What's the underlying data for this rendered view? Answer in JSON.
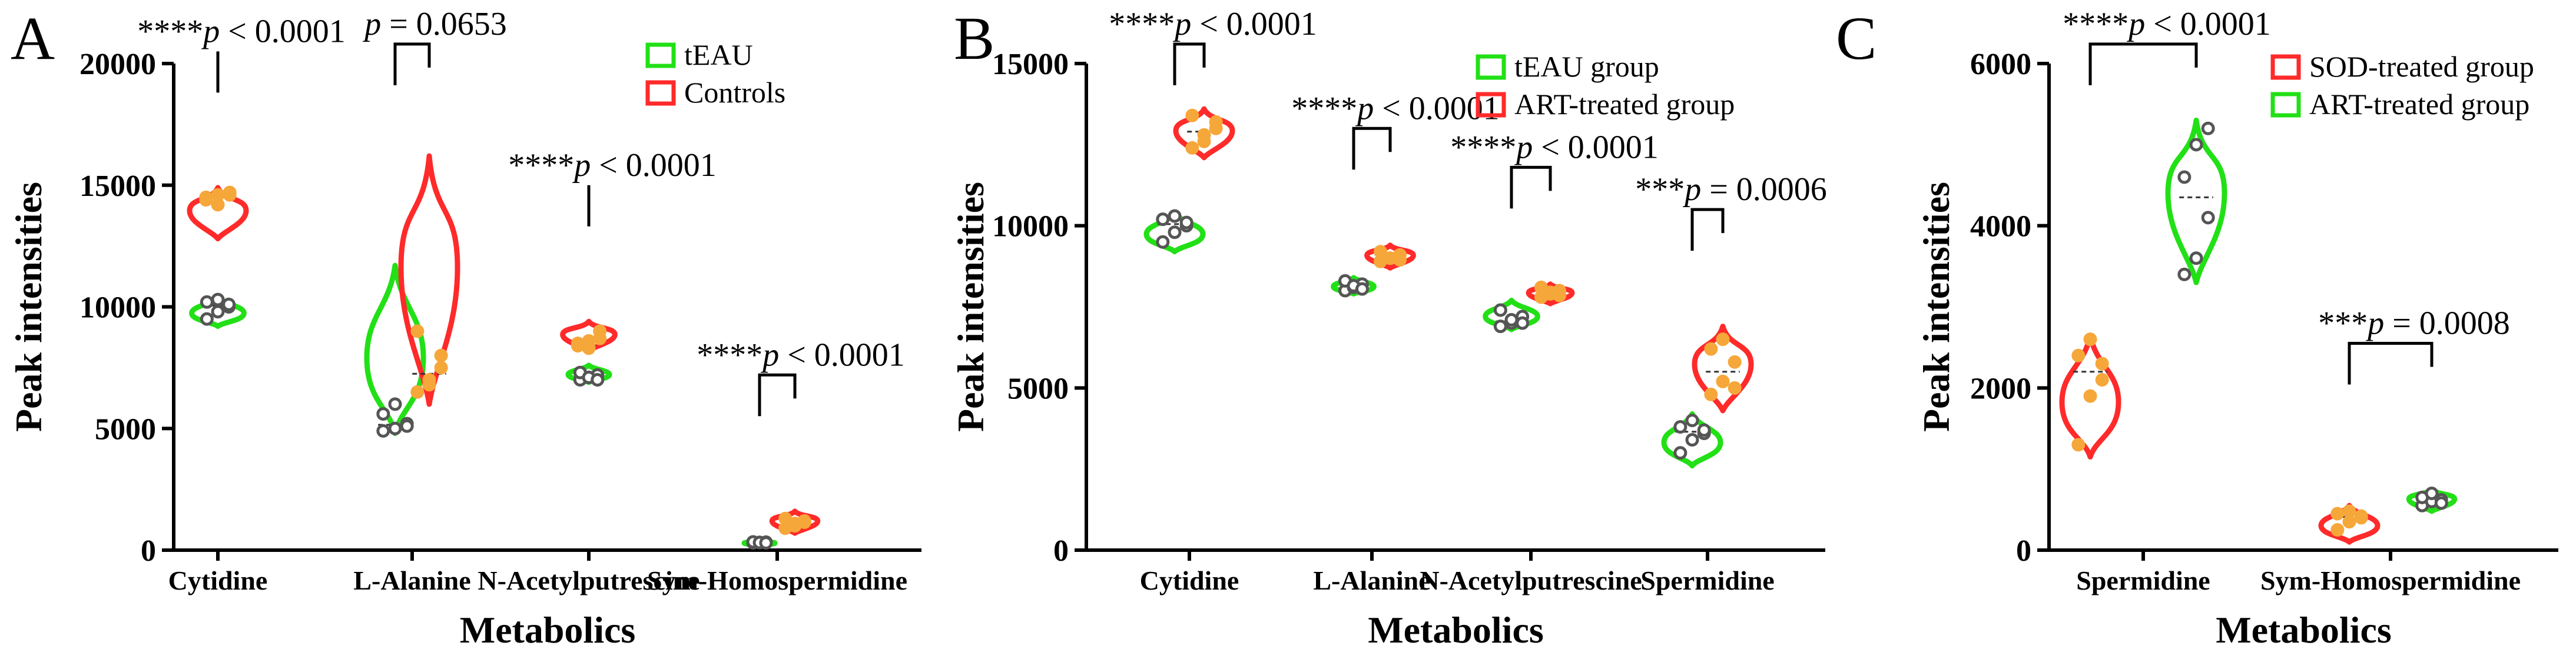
{
  "colors": {
    "green": "#22e016",
    "red": "#ff2a2a",
    "point_dark": "#555555",
    "point_orange": "#f6a73a",
    "axis": "#000000"
  },
  "chart_data": [
    {
      "panel": "A",
      "type": "violin",
      "ylabel": "Peak intensities",
      "xlabel": "Metabolics",
      "ylim": [
        0,
        20000
      ],
      "yticks": [
        0,
        5000,
        10000,
        15000,
        20000
      ],
      "categories": [
        "Cytidine",
        "L-Alanine",
        "N-Acetylputrescine",
        "Sym-Homospermidine"
      ],
      "legend": {
        "position": "top-right",
        "entries": [
          {
            "label": "tEAU",
            "color": "green"
          },
          {
            "label": "Controls",
            "color": "red"
          }
        ]
      },
      "series": [
        {
          "name": "tEAU",
          "color": "green",
          "point": "point_dark",
          "groups": [
            {
              "category": "Cytidine",
              "min": 9200,
              "max": 10400,
              "points": [
                9500,
                9800,
                10000,
                10200,
                10300,
                10100
              ]
            },
            {
              "category": "L-Alanine",
              "min": 4800,
              "max": 11700,
              "points": [
                4900,
                5000,
                5200,
                5600,
                6000,
                5100
              ]
            },
            {
              "category": "N-Acetylputrescine",
              "min": 6900,
              "max": 7600,
              "points": [
                7000,
                7100,
                7200,
                7300,
                7100,
                7000
              ]
            },
            {
              "category": "Sym-Homospermidine",
              "min": 200,
              "max": 400,
              "points": [
                300,
                320,
                330,
                340,
                310,
                300
              ]
            }
          ]
        },
        {
          "name": "Controls",
          "color": "red",
          "point": "point_orange",
          "groups": [
            {
              "category": "Cytidine",
              "min": 12800,
              "max": 14900,
              "points": [
                14500,
                14600,
                14700,
                14400,
                14200,
                14600
              ]
            },
            {
              "category": "L-Alanine",
              "min": 6000,
              "max": 16200,
              "points": [
                6500,
                7000,
                8000,
                9000,
                6800,
                7500
              ]
            },
            {
              "category": "N-Acetylputrescine",
              "min": 8200,
              "max": 9400,
              "points": [
                8400,
                8600,
                9000,
                8500,
                8300,
                8700
              ]
            },
            {
              "category": "Sym-Homospermidine",
              "min": 700,
              "max": 1600,
              "points": [
                900,
                1100,
                1200,
                1300,
                1000,
                1150
              ]
            }
          ]
        }
      ],
      "annotations": [
        {
          "category": "Cytidine",
          "stars": "****",
          "text": "p < 0.0001"
        },
        {
          "category": "L-Alanine",
          "stars": "",
          "text": "p = 0.0653"
        },
        {
          "category": "N-Acetylputrescine",
          "stars": "****",
          "text": "p < 0.0001"
        },
        {
          "category": "Sym-Homospermidine",
          "stars": "****",
          "text": "p < 0.0001"
        }
      ]
    },
    {
      "panel": "B",
      "type": "violin",
      "ylabel": "Peak intensities",
      "xlabel": "Metabolics",
      "ylim": [
        0,
        15000
      ],
      "yticks": [
        0,
        5000,
        10000,
        15000
      ],
      "categories": [
        "Cytidine",
        "L-Alanine",
        "N-Acetylputrescine",
        "Spermidine"
      ],
      "legend": {
        "position": "top-right",
        "entries": [
          {
            "label": "tEAU group",
            "color": "green"
          },
          {
            "label": "ART-treated group",
            "color": "red"
          }
        ]
      },
      "series": [
        {
          "name": "tEAU group",
          "color": "green",
          "point": "point_dark",
          "groups": [
            {
              "category": "Cytidine",
              "min": 9200,
              "max": 10400,
              "points": [
                9500,
                9800,
                10000,
                10200,
                10300,
                10100
              ]
            },
            {
              "category": "L-Alanine",
              "min": 7900,
              "max": 8400,
              "points": [
                8000,
                8100,
                8200,
                8300,
                8150,
                8050
              ]
            },
            {
              "category": "N-Acetylputrescine",
              "min": 6800,
              "max": 7700,
              "points": [
                6900,
                7000,
                7200,
                7400,
                7100,
                7000
              ]
            },
            {
              "category": "Spermidine",
              "min": 2600,
              "max": 4200,
              "points": [
                3000,
                3400,
                3600,
                3800,
                4000,
                3700
              ]
            }
          ]
        },
        {
          "name": "ART-treated group",
          "color": "red",
          "point": "point_orange",
          "groups": [
            {
              "category": "Cytidine",
              "min": 12100,
              "max": 13600,
              "points": [
                12400,
                12800,
                13200,
                13400,
                12600,
                13000
              ]
            },
            {
              "category": "L-Alanine",
              "min": 8700,
              "max": 9400,
              "points": [
                8900,
                9000,
                9100,
                9200,
                9000,
                8950
              ]
            },
            {
              "category": "N-Acetylputrescine",
              "min": 7600,
              "max": 8200,
              "points": [
                7800,
                7900,
                8000,
                8100,
                7950,
                7850
              ]
            },
            {
              "category": "Spermidine",
              "min": 4300,
              "max": 6900,
              "points": [
                4800,
                5200,
                5800,
                6200,
                6500,
                5000
              ]
            }
          ]
        }
      ],
      "annotations": [
        {
          "category": "Cytidine",
          "stars": "****",
          "text": "p < 0.0001"
        },
        {
          "category": "L-Alanine",
          "stars": "****",
          "text": "p < 0.0001"
        },
        {
          "category": "N-Acetylputrescine",
          "stars": "****",
          "text": "p < 0.0001"
        },
        {
          "category": "Spermidine",
          "stars": "***",
          "text": "p = 0.0006"
        }
      ]
    },
    {
      "panel": "C",
      "type": "violin",
      "ylabel": "Peak intensities",
      "xlabel": "Metabolics",
      "ylim": [
        0,
        6000
      ],
      "yticks": [
        0,
        2000,
        4000,
        6000
      ],
      "categories": [
        "Spermidine",
        "Sym-Homospermidine"
      ],
      "legend": {
        "position": "top-right",
        "entries": [
          {
            "label": "SOD-treated group",
            "color": "red"
          },
          {
            "label": "ART-treated group",
            "color": "green"
          }
        ]
      },
      "series": [
        {
          "name": "SOD-treated group",
          "color": "red",
          "point": "point_orange",
          "groups": [
            {
              "category": "Spermidine",
              "min": 1150,
              "max": 2650,
              "points": [
                1300,
                1900,
                2300,
                2400,
                2600,
                2100
              ]
            },
            {
              "category": "Sym-Homospermidine",
              "min": 100,
              "max": 550,
              "points": [
                250,
                350,
                420,
                450,
                480,
                400
              ]
            }
          ]
        },
        {
          "name": "ART-treated group",
          "color": "green",
          "point": "point_dark",
          "groups": [
            {
              "category": "Spermidine",
              "min": 3300,
              "max": 5300,
              "points": [
                3400,
                3600,
                4100,
                4600,
                5000,
                5200
              ]
            },
            {
              "category": "Sym-Homospermidine",
              "min": 480,
              "max": 750,
              "points": [
                550,
                600,
                620,
                650,
                700,
                580
              ]
            }
          ]
        }
      ],
      "annotations": [
        {
          "category": "Spermidine",
          "stars": "****",
          "text": "p < 0.0001"
        },
        {
          "category": "Sym-Homospermidine",
          "stars": "***",
          "text": "p = 0.0008"
        }
      ]
    }
  ]
}
